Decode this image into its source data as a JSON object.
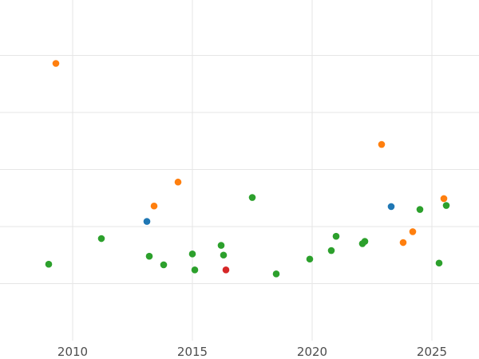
{
  "chart_data": {
    "type": "scatter",
    "title": "",
    "xlabel": "",
    "ylabel": "",
    "xlim": [
      2009.95,
      2026.95
    ],
    "ylim": [
      0,
      6
    ],
    "grid": true,
    "x_ticks": [
      2010,
      2015,
      2020,
      2025
    ],
    "x_tick_labels": [
      "2010",
      "2015",
      "2020",
      "2025"
    ],
    "y_gridlines": [
      1,
      2,
      3,
      4,
      5
    ],
    "y_tick_labels": [],
    "colors": {
      "blue": "#1f77b4",
      "orange": "#ff7f0e",
      "green": "#2ca02c",
      "red": "#d62728"
    },
    "series": [
      {
        "color": "#1f77b4",
        "points": [
          {
            "x": 2013.1,
            "y": 2.09
          },
          {
            "x": 2023.3,
            "y": 2.35
          }
        ]
      },
      {
        "color": "#ff7f0e",
        "points": [
          {
            "x": 2009.3,
            "y": 4.86
          },
          {
            "x": 2013.4,
            "y": 2.36
          },
          {
            "x": 2014.4,
            "y": 2.78
          },
          {
            "x": 2022.9,
            "y": 3.44
          },
          {
            "x": 2023.8,
            "y": 1.72
          },
          {
            "x": 2024.2,
            "y": 1.91
          },
          {
            "x": 2025.5,
            "y": 2.49
          }
        ]
      },
      {
        "color": "#2ca02c",
        "points": [
          {
            "x": 2009.0,
            "y": 1.34
          },
          {
            "x": 2011.2,
            "y": 1.79
          },
          {
            "x": 2013.2,
            "y": 1.48
          },
          {
            "x": 2013.8,
            "y": 1.33
          },
          {
            "x": 2015.0,
            "y": 1.52
          },
          {
            "x": 2015.1,
            "y": 1.24
          },
          {
            "x": 2016.2,
            "y": 1.67
          },
          {
            "x": 2016.3,
            "y": 1.5
          },
          {
            "x": 2017.5,
            "y": 2.51
          },
          {
            "x": 2018.5,
            "y": 1.17
          },
          {
            "x": 2019.9,
            "y": 1.43
          },
          {
            "x": 2020.8,
            "y": 1.58
          },
          {
            "x": 2021.0,
            "y": 1.83
          },
          {
            "x": 2022.1,
            "y": 1.7
          },
          {
            "x": 2022.2,
            "y": 1.74
          },
          {
            "x": 2024.5,
            "y": 2.3
          },
          {
            "x": 2025.3,
            "y": 1.36
          },
          {
            "x": 2025.6,
            "y": 2.37
          }
        ]
      },
      {
        "color": "#d62728",
        "points": [
          {
            "x": 2016.4,
            "y": 1.24
          }
        ]
      }
    ]
  }
}
